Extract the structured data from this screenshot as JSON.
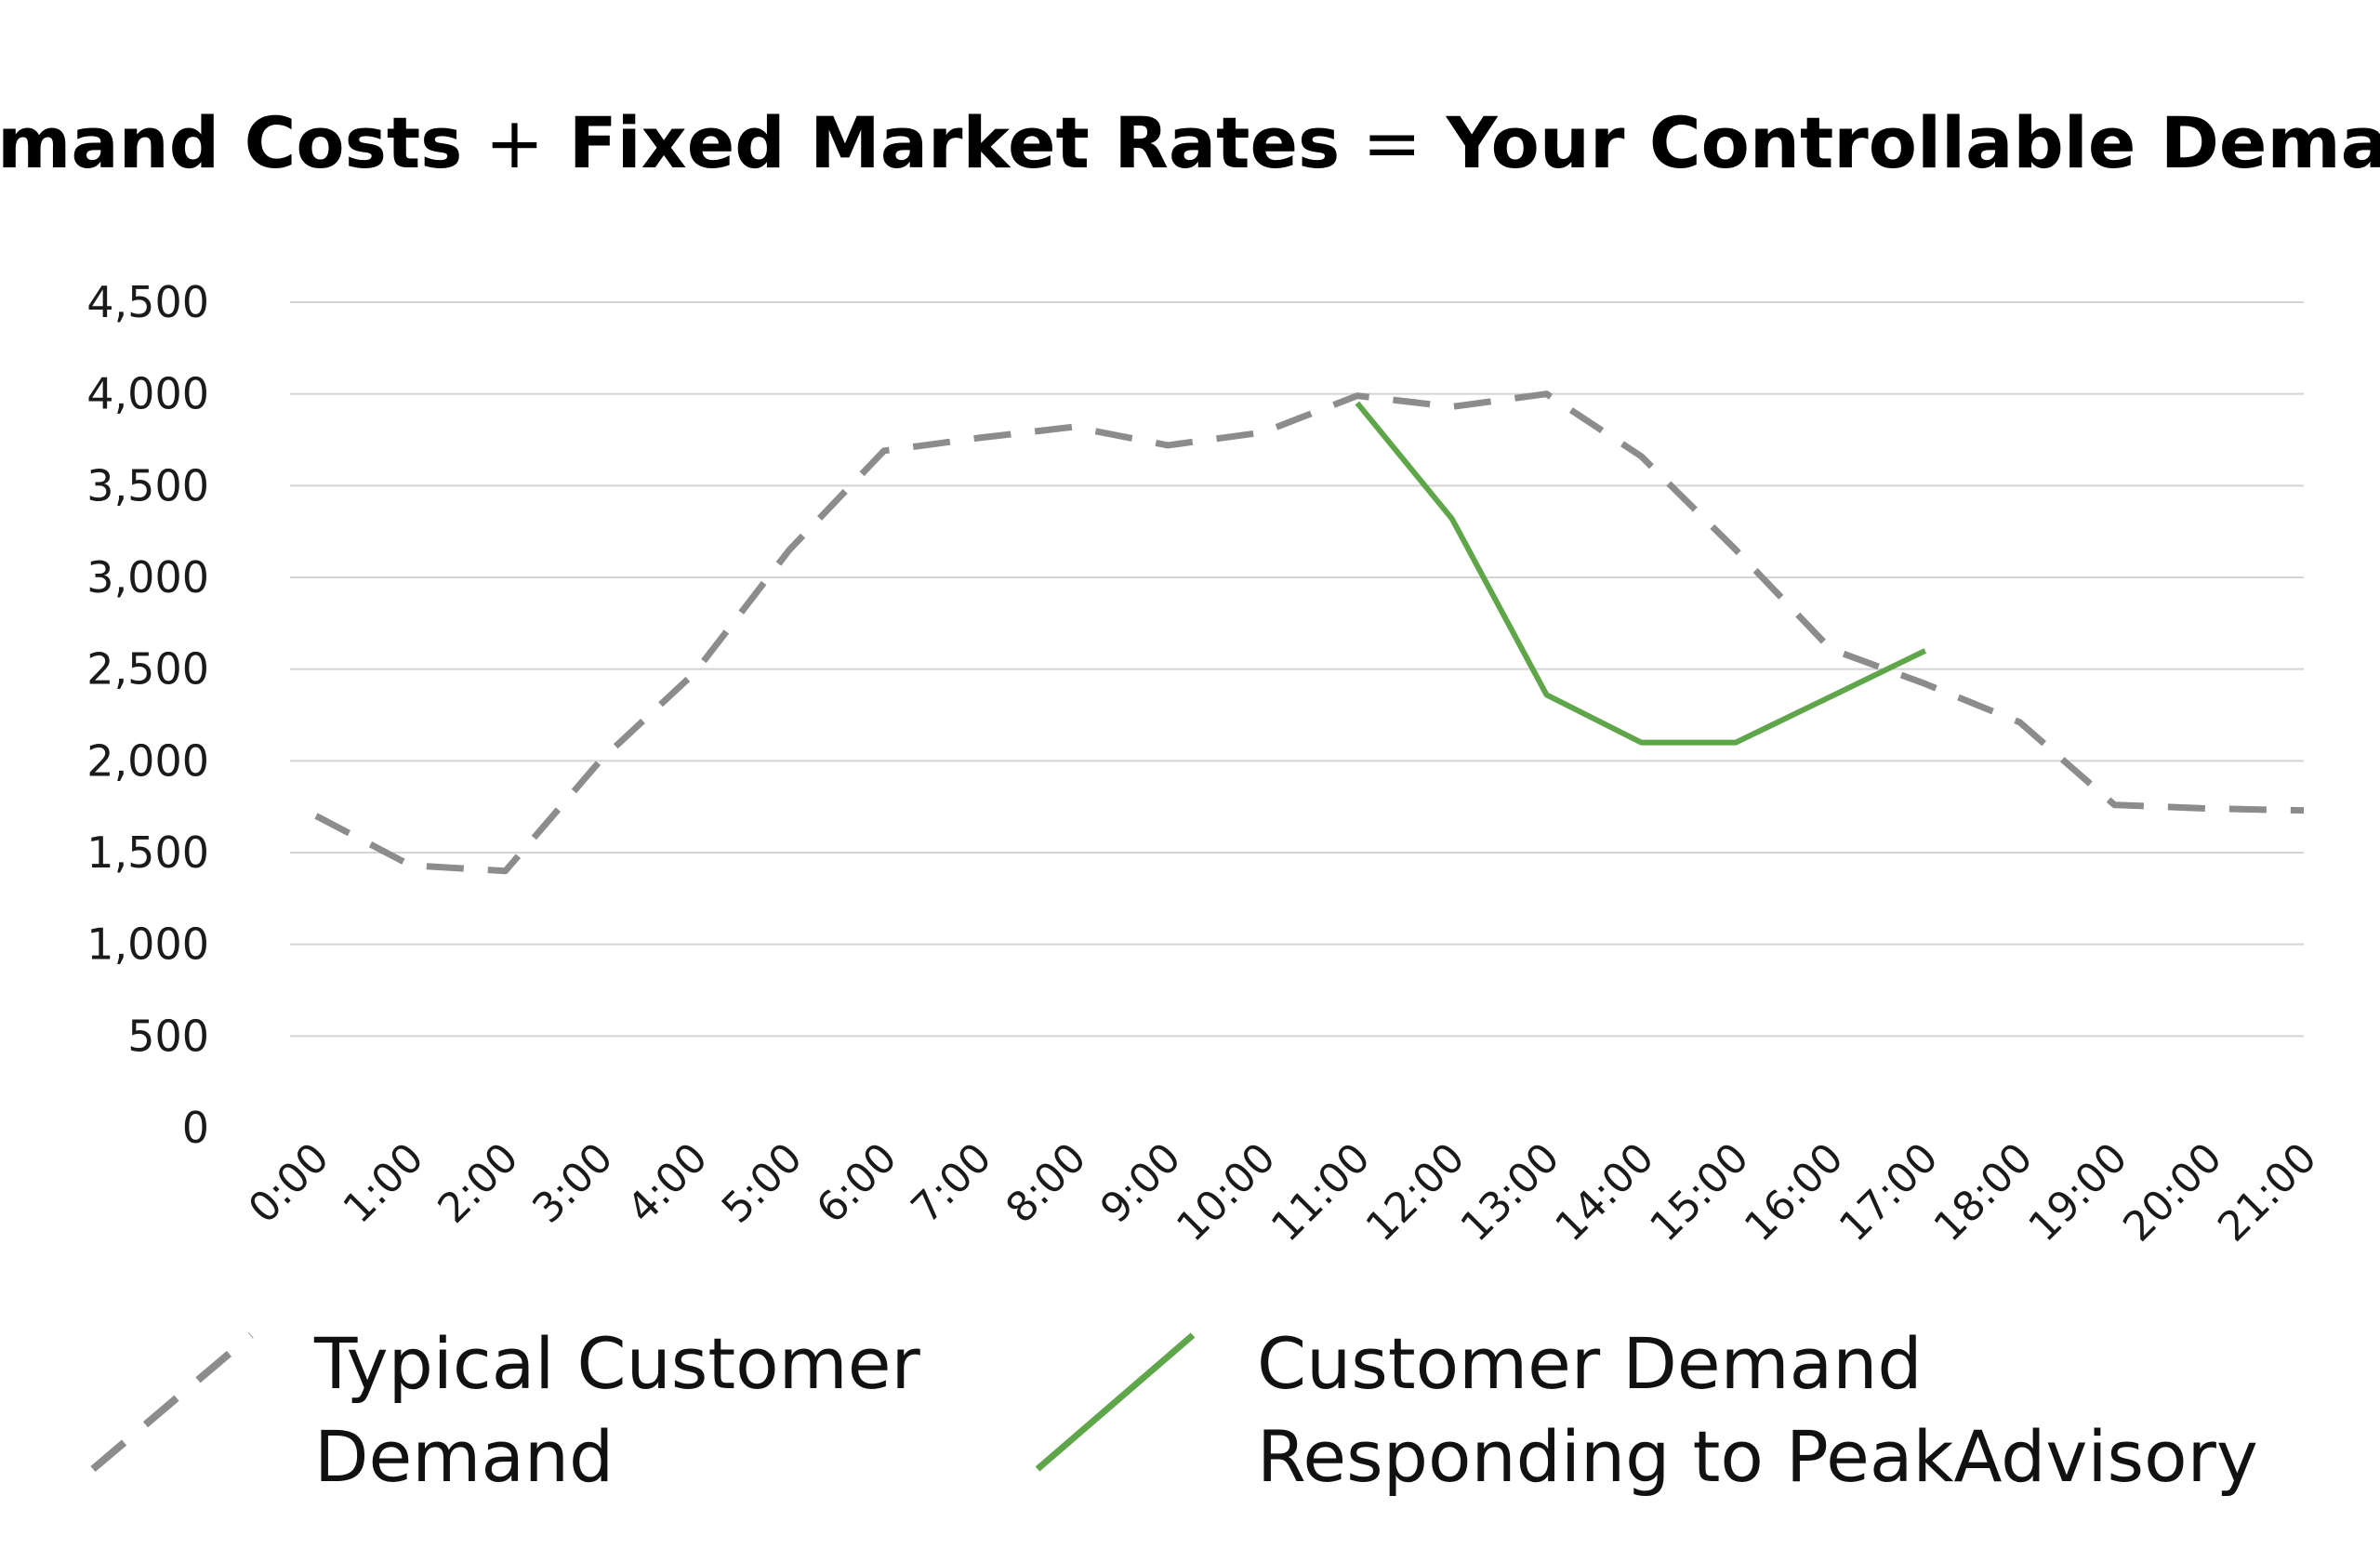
{
  "chart_data": {
    "type": "line",
    "title_parts": [
      {
        "text": "Demand Costs",
        "style": "bold"
      },
      {
        "text": "+",
        "style": "operator"
      },
      {
        "text": "Fixed Market Rates",
        "style": "bold"
      },
      {
        "text": "=",
        "style": "operator"
      },
      {
        "text": "Your Controllable Demand",
        "style": "bold"
      }
    ],
    "categories": [
      "0:00",
      "1:00",
      "2:00",
      "3:00",
      "4:00",
      "5:00",
      "6:00",
      "7:00",
      "8:00",
      "9:00",
      "10:00",
      "11:00",
      "12:00",
      "13:00",
      "14:00",
      "15:00",
      "16:00",
      "17:00",
      "18:00",
      "19:00",
      "20:00",
      "21:00"
    ],
    "ylim": [
      0,
      4500
    ],
    "yticks": [
      "0",
      "500",
      "1,000",
      "1,500",
      "2,000",
      "2,500",
      "3,000",
      "3,500",
      "4,000",
      "4,500"
    ],
    "grid": true,
    "legend_position": "bottom",
    "series": [
      {
        "name_lines": [
          "Typical Customer",
          "Demand"
        ],
        "color": "#8c8c8c",
        "style": "dashed",
        "values": [
          1700,
          1430,
          1400,
          2000,
          2480,
          3150,
          3690,
          3760,
          3820,
          3720,
          3790,
          3990,
          3930,
          4000,
          3660,
          3150,
          2610,
          2420,
          2210,
          1760,
          1740,
          1730
        ]
      },
      {
        "name_lines": [
          "Customer Demand",
          "Responding to PeakAdvisory"
        ],
        "color": "#5fa64a",
        "style": "solid",
        "values": [
          null,
          null,
          null,
          null,
          null,
          null,
          null,
          null,
          null,
          null,
          null,
          3950,
          3320,
          2360,
          2100,
          2100,
          2350,
          2600,
          null,
          null,
          null,
          null
        ]
      }
    ]
  }
}
